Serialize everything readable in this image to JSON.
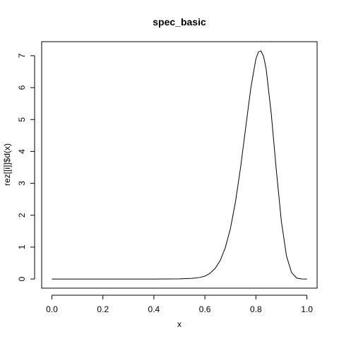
{
  "chart_data": {
    "type": "line",
    "title": "spec_basic",
    "xlabel": "x",
    "ylabel": "rez[[i]]$d(x)",
    "xlim": [
      -0.04,
      1.04
    ],
    "ylim": [
      -0.286,
      7.44
    ],
    "x_ticks": [
      0,
      0.2,
      0.4,
      0.6,
      0.8,
      1
    ],
    "x_tick_labels": [
      "0.0",
      "0.2",
      "0.4",
      "0.6",
      "0.8",
      "1.0"
    ],
    "y_ticks": [
      0,
      1,
      2,
      3,
      4,
      5,
      6,
      7
    ],
    "y_tick_labels": [
      "0",
      "1",
      "2",
      "3",
      "4",
      "5",
      "6",
      "7"
    ],
    "grid": false,
    "series": [
      {
        "x": [
          0.0,
          0.1,
          0.2,
          0.3,
          0.4,
          0.45,
          0.5,
          0.55,
          0.58,
          0.6,
          0.62,
          0.64,
          0.66,
          0.68,
          0.7,
          0.72,
          0.74,
          0.76,
          0.78,
          0.8,
          0.81,
          0.82,
          0.83,
          0.84,
          0.86,
          0.88,
          0.9,
          0.92,
          0.94,
          0.96,
          0.98,
          1.0
        ],
        "y": [
          0,
          0,
          0,
          0,
          0,
          0.001,
          0.004,
          0.02,
          0.05,
          0.09,
          0.18,
          0.33,
          0.58,
          0.98,
          1.58,
          2.42,
          3.5,
          4.75,
          5.98,
          6.9,
          7.12,
          7.15,
          6.98,
          6.6,
          5.2,
          3.42,
          1.8,
          0.72,
          0.2,
          0.03,
          0.002,
          0
        ]
      }
    ]
  }
}
